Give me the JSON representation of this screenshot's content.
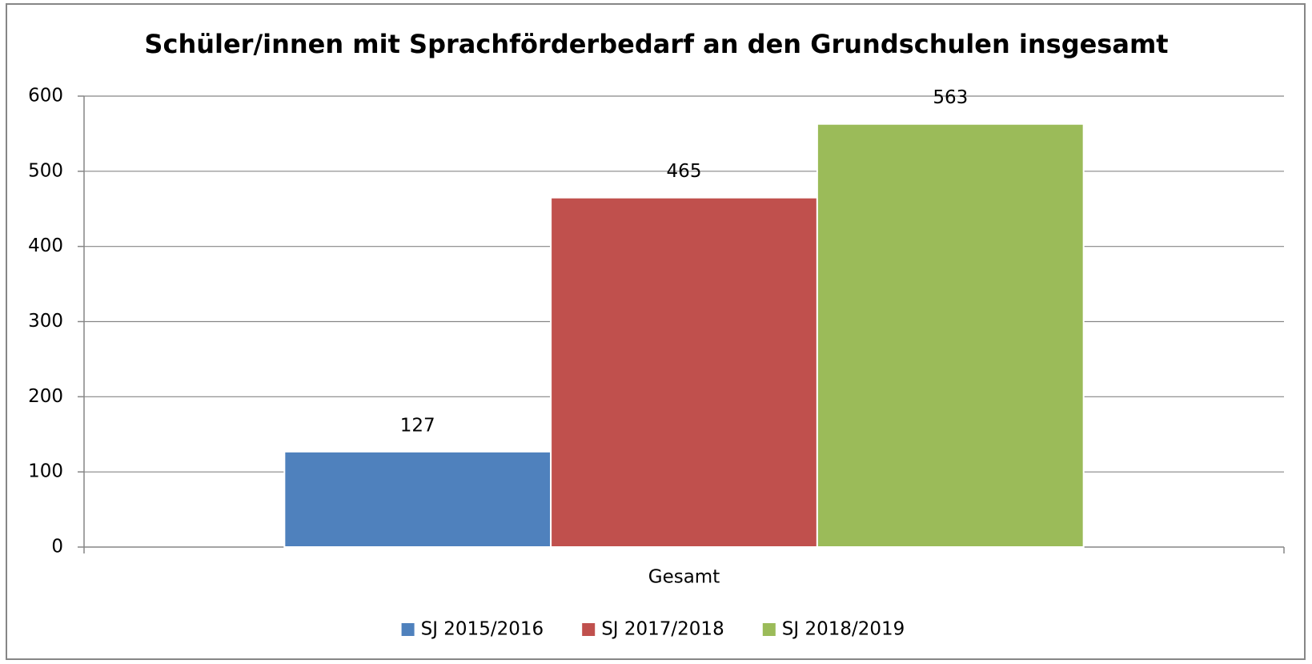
{
  "chart_data": {
    "type": "bar",
    "title": "Schüler/innen mit Sprachförderbedarf an den Grundschulen insgesamt",
    "categories": [
      "Gesamt"
    ],
    "series": [
      {
        "name": "SJ 2015/2016",
        "color": "#4f81bd",
        "values": [
          127
        ]
      },
      {
        "name": "SJ 2017/2018",
        "color": "#c0504d",
        "values": [
          465
        ]
      },
      {
        "name": "SJ 2018/2019",
        "color": "#9bbb59",
        "values": [
          563
        ]
      }
    ],
    "ylim": [
      0,
      600
    ],
    "yticks": [
      0,
      100,
      200,
      300,
      400,
      500,
      600
    ],
    "grid": true,
    "legend": "bottom"
  }
}
